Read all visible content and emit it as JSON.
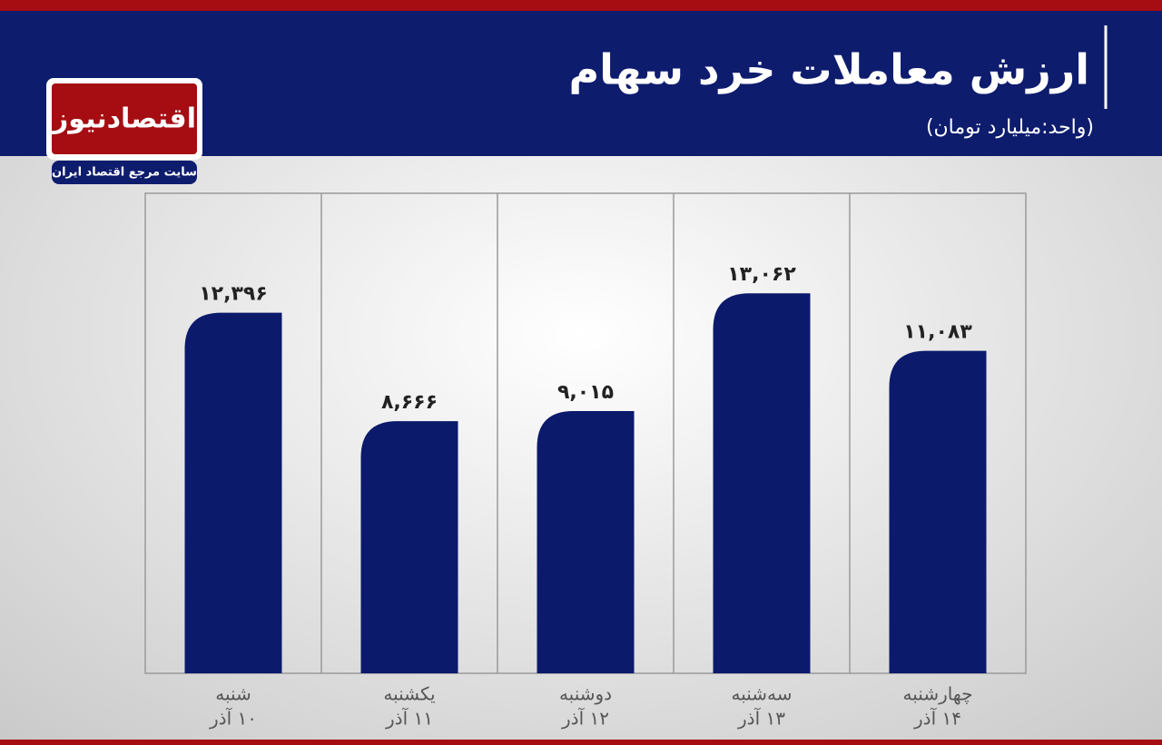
{
  "logo": {
    "name": "اقتصادنیوز",
    "tagline": "سایت مرجع اقتصاد ایران"
  },
  "chart_data": {
    "type": "bar",
    "title": "ارزش معاملات خرد سهام",
    "subtitle": "(واحد:میلیارد تومان)",
    "categories": [
      "شنبه",
      "یکشنبه",
      "دوشنبه",
      "سه‌شنبه",
      "چهارشنبه"
    ],
    "dates": [
      "۱۰ آذر",
      "۱۱ آذر",
      "۱۲ آذر",
      "۱۳ آذر",
      "۱۴ آذر"
    ],
    "values": [
      12396,
      8666,
      9015,
      13062,
      11083
    ],
    "value_labels": [
      "۱۲,۳۹۶",
      "۸,۶۶۶",
      "۹,۰۱۵",
      "۱۳,۰۶۲",
      "۱۱,۰۸۳"
    ],
    "color": "#0c1a6b",
    "ylim": [
      0,
      16500
    ]
  }
}
